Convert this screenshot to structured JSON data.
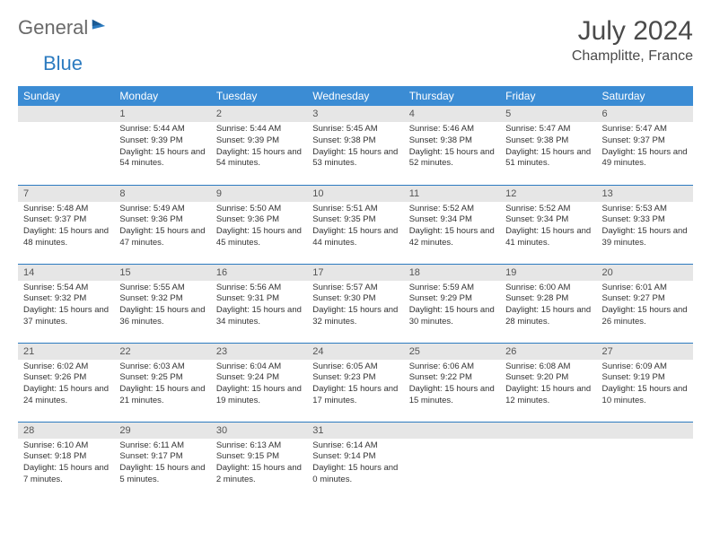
{
  "logo": {
    "general": "General",
    "blue": "Blue"
  },
  "header": {
    "title": "July 2024",
    "location": "Champlitte, France"
  },
  "colors": {
    "header_bg": "#3b8cd4",
    "header_text": "#ffffff",
    "daynum_bg": "#e6e6e6",
    "row_divider": "#2c7bc0",
    "logo_gray": "#6a6a6a",
    "logo_blue": "#2c7bc0",
    "text": "#333333"
  },
  "columns": [
    "Sunday",
    "Monday",
    "Tuesday",
    "Wednesday",
    "Thursday",
    "Friday",
    "Saturday"
  ],
  "grid": [
    [
      {
        "blank": true
      },
      {
        "day": "1",
        "sunrise": "5:44 AM",
        "sunset": "9:39 PM",
        "daylight": "15 hours and 54 minutes."
      },
      {
        "day": "2",
        "sunrise": "5:44 AM",
        "sunset": "9:39 PM",
        "daylight": "15 hours and 54 minutes."
      },
      {
        "day": "3",
        "sunrise": "5:45 AM",
        "sunset": "9:38 PM",
        "daylight": "15 hours and 53 minutes."
      },
      {
        "day": "4",
        "sunrise": "5:46 AM",
        "sunset": "9:38 PM",
        "daylight": "15 hours and 52 minutes."
      },
      {
        "day": "5",
        "sunrise": "5:47 AM",
        "sunset": "9:38 PM",
        "daylight": "15 hours and 51 minutes."
      },
      {
        "day": "6",
        "sunrise": "5:47 AM",
        "sunset": "9:37 PM",
        "daylight": "15 hours and 49 minutes."
      }
    ],
    [
      {
        "day": "7",
        "sunrise": "5:48 AM",
        "sunset": "9:37 PM",
        "daylight": "15 hours and 48 minutes."
      },
      {
        "day": "8",
        "sunrise": "5:49 AM",
        "sunset": "9:36 PM",
        "daylight": "15 hours and 47 minutes."
      },
      {
        "day": "9",
        "sunrise": "5:50 AM",
        "sunset": "9:36 PM",
        "daylight": "15 hours and 45 minutes."
      },
      {
        "day": "10",
        "sunrise": "5:51 AM",
        "sunset": "9:35 PM",
        "daylight": "15 hours and 44 minutes."
      },
      {
        "day": "11",
        "sunrise": "5:52 AM",
        "sunset": "9:34 PM",
        "daylight": "15 hours and 42 minutes."
      },
      {
        "day": "12",
        "sunrise": "5:52 AM",
        "sunset": "9:34 PM",
        "daylight": "15 hours and 41 minutes."
      },
      {
        "day": "13",
        "sunrise": "5:53 AM",
        "sunset": "9:33 PM",
        "daylight": "15 hours and 39 minutes."
      }
    ],
    [
      {
        "day": "14",
        "sunrise": "5:54 AM",
        "sunset": "9:32 PM",
        "daylight": "15 hours and 37 minutes."
      },
      {
        "day": "15",
        "sunrise": "5:55 AM",
        "sunset": "9:32 PM",
        "daylight": "15 hours and 36 minutes."
      },
      {
        "day": "16",
        "sunrise": "5:56 AM",
        "sunset": "9:31 PM",
        "daylight": "15 hours and 34 minutes."
      },
      {
        "day": "17",
        "sunrise": "5:57 AM",
        "sunset": "9:30 PM",
        "daylight": "15 hours and 32 minutes."
      },
      {
        "day": "18",
        "sunrise": "5:59 AM",
        "sunset": "9:29 PM",
        "daylight": "15 hours and 30 minutes."
      },
      {
        "day": "19",
        "sunrise": "6:00 AM",
        "sunset": "9:28 PM",
        "daylight": "15 hours and 28 minutes."
      },
      {
        "day": "20",
        "sunrise": "6:01 AM",
        "sunset": "9:27 PM",
        "daylight": "15 hours and 26 minutes."
      }
    ],
    [
      {
        "day": "21",
        "sunrise": "6:02 AM",
        "sunset": "9:26 PM",
        "daylight": "15 hours and 24 minutes."
      },
      {
        "day": "22",
        "sunrise": "6:03 AM",
        "sunset": "9:25 PM",
        "daylight": "15 hours and 21 minutes."
      },
      {
        "day": "23",
        "sunrise": "6:04 AM",
        "sunset": "9:24 PM",
        "daylight": "15 hours and 19 minutes."
      },
      {
        "day": "24",
        "sunrise": "6:05 AM",
        "sunset": "9:23 PM",
        "daylight": "15 hours and 17 minutes."
      },
      {
        "day": "25",
        "sunrise": "6:06 AM",
        "sunset": "9:22 PM",
        "daylight": "15 hours and 15 minutes."
      },
      {
        "day": "26",
        "sunrise": "6:08 AM",
        "sunset": "9:20 PM",
        "daylight": "15 hours and 12 minutes."
      },
      {
        "day": "27",
        "sunrise": "6:09 AM",
        "sunset": "9:19 PM",
        "daylight": "15 hours and 10 minutes."
      }
    ],
    [
      {
        "day": "28",
        "sunrise": "6:10 AM",
        "sunset": "9:18 PM",
        "daylight": "15 hours and 7 minutes."
      },
      {
        "day": "29",
        "sunrise": "6:11 AM",
        "sunset": "9:17 PM",
        "daylight": "15 hours and 5 minutes."
      },
      {
        "day": "30",
        "sunrise": "6:13 AM",
        "sunset": "9:15 PM",
        "daylight": "15 hours and 2 minutes."
      },
      {
        "day": "31",
        "sunrise": "6:14 AM",
        "sunset": "9:14 PM",
        "daylight": "15 hours and 0 minutes."
      },
      {
        "blank": true
      },
      {
        "blank": true
      },
      {
        "blank": true
      }
    ]
  ],
  "labels": {
    "sunrise": "Sunrise:",
    "sunset": "Sunset:",
    "daylight": "Daylight:"
  }
}
